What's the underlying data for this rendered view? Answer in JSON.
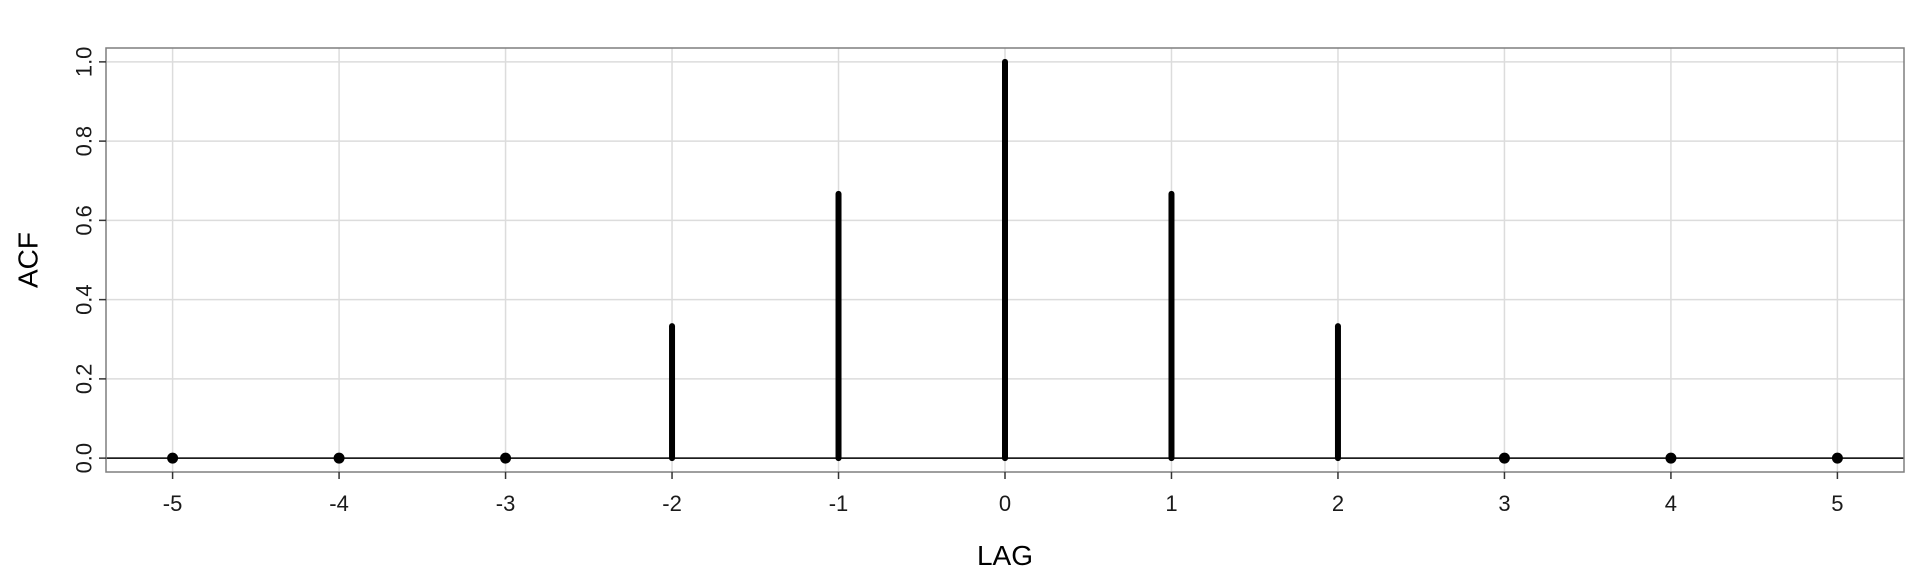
{
  "chart_data": {
    "type": "lollipop",
    "xlabel": "LAG",
    "ylabel": "ACF",
    "x": [
      -5,
      -4,
      -3,
      -2,
      -1,
      0,
      1,
      2,
      3,
      4,
      5
    ],
    "values": [
      0,
      0,
      0,
      0.333,
      0.667,
      1.0,
      0.667,
      0.333,
      0,
      0,
      0
    ],
    "xlim": [
      -5.4,
      5.4
    ],
    "ylim": [
      -0.035,
      1.035
    ],
    "x_ticks": [
      "-5",
      "-4",
      "-3",
      "-2",
      "-1",
      "0",
      "1",
      "2",
      "3",
      "4",
      "5"
    ],
    "y_ticks": [
      "0.0",
      "0.2",
      "0.4",
      "0.6",
      "0.8",
      "1.0"
    ],
    "y_tick_values": [
      0,
      0.2,
      0.4,
      0.6,
      0.8,
      1.0
    ],
    "grid": true,
    "zero_line": true,
    "colors": {
      "marks": "#000000",
      "grid": "#dcdcdc",
      "border": "#7f7f7f"
    }
  }
}
